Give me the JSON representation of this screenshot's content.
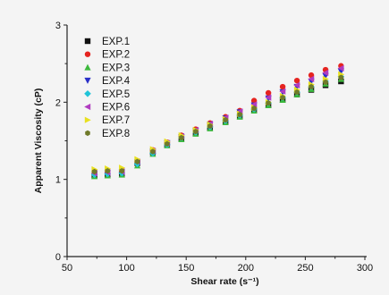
{
  "chart_data": {
    "type": "scatter",
    "xlabel": "Shear rate (s⁻¹)",
    "ylabel": "Apparent Viscosity (cP)",
    "xlim": [
      50,
      300
    ],
    "ylim": [
      0,
      3
    ],
    "xticks": [
      "50",
      "100",
      "150",
      "200",
      "250",
      "300"
    ],
    "yticks": [
      "0",
      "1",
      "2",
      "3"
    ],
    "legend_position": "top-left",
    "x": [
      73,
      84,
      96,
      109,
      122,
      134,
      146,
      158,
      170,
      183,
      195,
      207,
      219,
      231,
      243,
      255,
      267,
      280
    ],
    "series": [
      {
        "name": "EXP.1",
        "color": "#111111",
        "marker": "square",
        "values": [
          1.05,
          1.06,
          1.07,
          1.21,
          1.35,
          1.45,
          1.53,
          1.6,
          1.67,
          1.75,
          1.82,
          1.9,
          1.96,
          2.03,
          2.1,
          2.16,
          2.22,
          2.27
        ]
      },
      {
        "name": "EXP.2",
        "color": "#e52420",
        "marker": "circle",
        "values": [
          1.1,
          1.11,
          1.12,
          1.24,
          1.38,
          1.48,
          1.57,
          1.65,
          1.73,
          1.81,
          1.89,
          2.02,
          2.12,
          2.2,
          2.28,
          2.35,
          2.42,
          2.47
        ]
      },
      {
        "name": "EXP.3",
        "color": "#3cb93c",
        "marker": "triangle-up",
        "values": [
          1.04,
          1.05,
          1.06,
          1.18,
          1.33,
          1.44,
          1.52,
          1.59,
          1.66,
          1.74,
          1.81,
          1.89,
          1.96,
          2.03,
          2.1,
          2.17,
          2.24,
          2.3
        ]
      },
      {
        "name": "EXP.4",
        "color": "#2a2fc8",
        "marker": "triangle-down",
        "values": [
          1.07,
          1.08,
          1.09,
          1.22,
          1.36,
          1.47,
          1.55,
          1.63,
          1.71,
          1.79,
          1.87,
          1.96,
          2.05,
          2.13,
          2.2,
          2.27,
          2.34,
          2.4
        ]
      },
      {
        "name": "EXP.5",
        "color": "#20c4d8",
        "marker": "diamond",
        "values": [
          1.06,
          1.07,
          1.08,
          1.2,
          1.34,
          1.45,
          1.54,
          1.61,
          1.68,
          1.76,
          1.83,
          1.91,
          1.99,
          2.06,
          2.13,
          2.2,
          2.27,
          2.33
        ]
      },
      {
        "name": "EXP.6",
        "color": "#b03cc0",
        "marker": "triangle-left",
        "values": [
          1.08,
          1.09,
          1.1,
          1.23,
          1.37,
          1.47,
          1.56,
          1.64,
          1.72,
          1.8,
          1.88,
          1.97,
          2.06,
          2.14,
          2.22,
          2.3,
          2.38,
          2.44
        ]
      },
      {
        "name": "EXP.7",
        "color": "#e8e020",
        "marker": "triangle-right",
        "values": [
          1.13,
          1.14,
          1.15,
          1.26,
          1.39,
          1.49,
          1.57,
          1.64,
          1.71,
          1.78,
          1.85,
          1.93,
          2.0,
          2.08,
          2.16,
          2.23,
          2.3,
          2.36
        ]
      },
      {
        "name": "EXP.8",
        "color": "#707a2a",
        "marker": "hexagon",
        "values": [
          1.1,
          1.11,
          1.11,
          1.23,
          1.36,
          1.46,
          1.54,
          1.62,
          1.69,
          1.77,
          1.84,
          1.92,
          1.99,
          2.06,
          2.13,
          2.2,
          2.26,
          2.32
        ]
      }
    ]
  }
}
